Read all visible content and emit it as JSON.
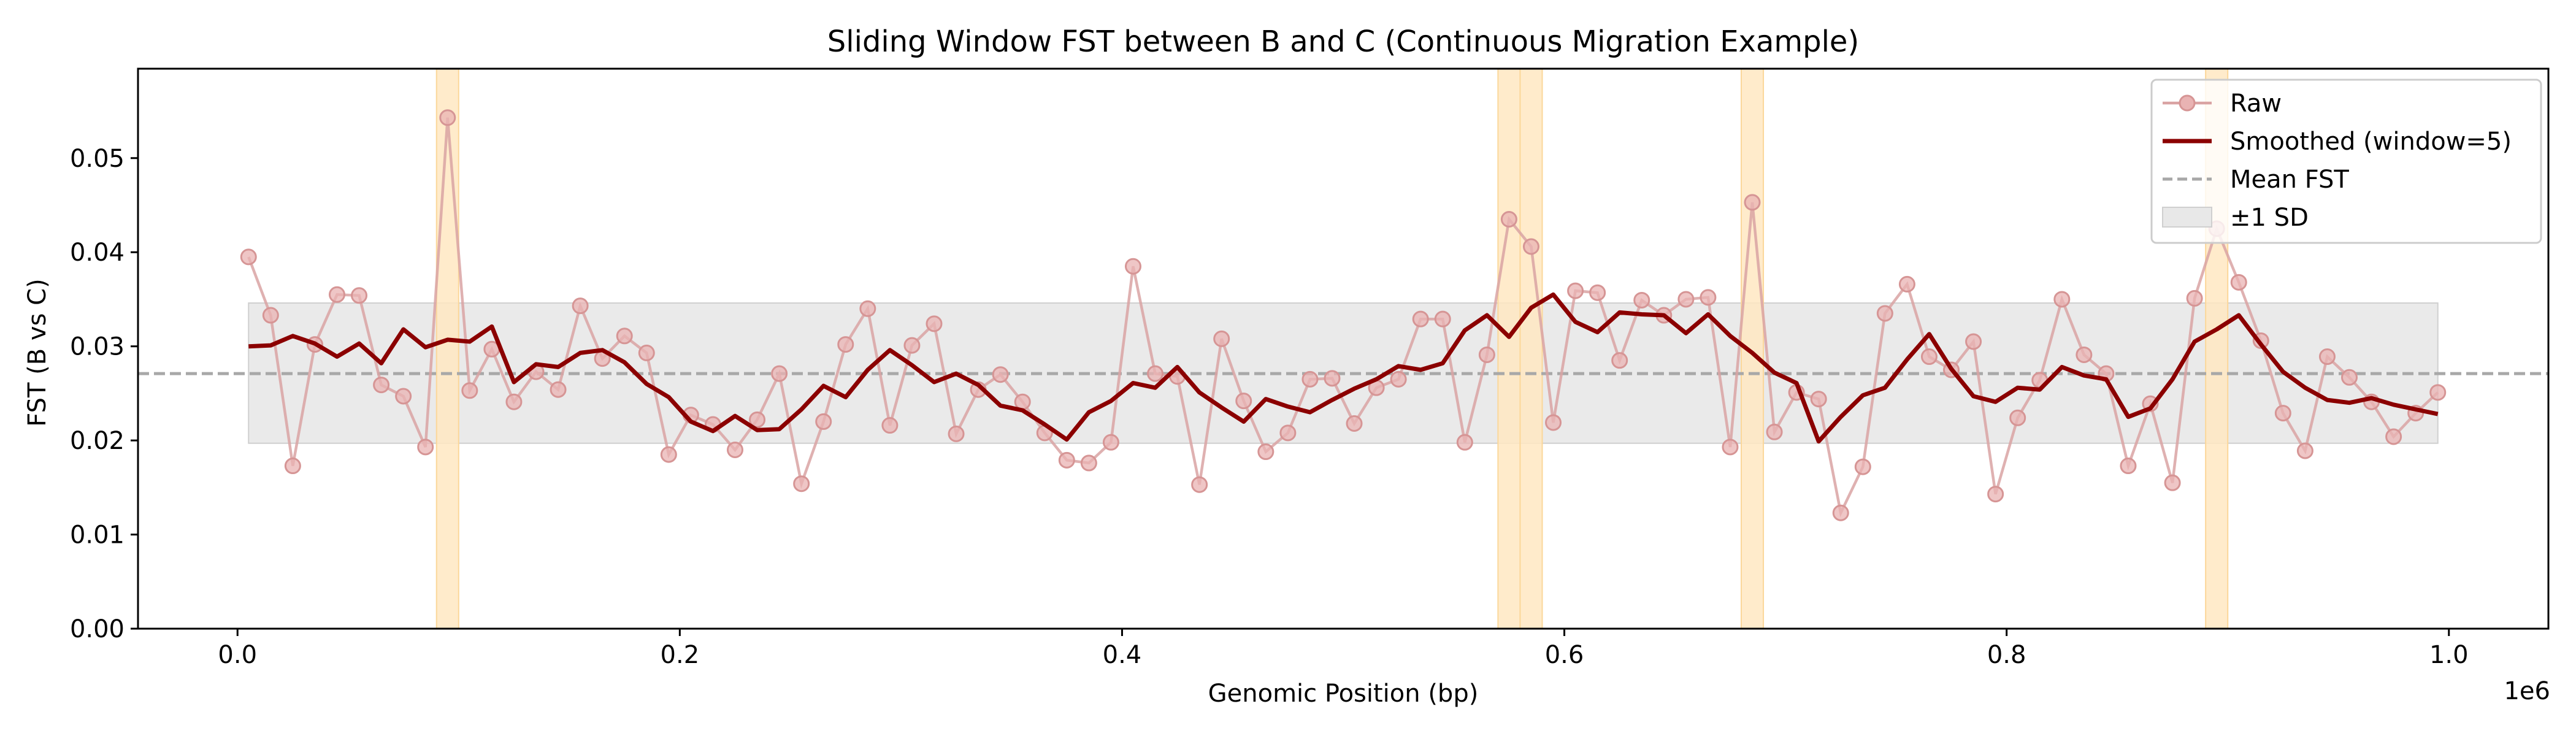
{
  "chart_data": {
    "type": "line",
    "title": "Sliding Window FST between B and C (Continuous Migration Example)",
    "xlabel": "Genomic Position (bp)",
    "ylabel": "FST (B vs C)",
    "x_offset_label": "1e6",
    "xlim": [
      -45000,
      1045000
    ],
    "ylim": [
      0.0,
      0.0595
    ],
    "x_ticks": [
      0.0,
      0.2,
      0.4,
      0.6,
      0.8,
      1.0
    ],
    "x_tick_labels": [
      "0.0",
      "0.2",
      "0.4",
      "0.6",
      "0.8",
      "1.0"
    ],
    "y_ticks": [
      0.0,
      0.01,
      0.02,
      0.03,
      0.04,
      0.05
    ],
    "y_tick_labels": [
      "0.00",
      "0.01",
      "0.02",
      "0.03",
      "0.04",
      "0.05"
    ],
    "grid": false,
    "legend_position": "top-right",
    "mean_fst": 0.0271,
    "sd_band": [
      0.0197,
      0.0346
    ],
    "band_x": [
      5000,
      995000
    ],
    "highlight_windows": [
      [
        90000,
        100000
      ],
      [
        570000,
        580000
      ],
      [
        580000,
        590000
      ],
      [
        680000,
        690000
      ],
      [
        890000,
        900000
      ]
    ],
    "colors": {
      "raw": "#d9a3a3",
      "smoothed": "#8b0000",
      "mean": "#a8a8a8",
      "band": "#e8e8e8",
      "highlight": "#ffe8c2"
    },
    "series": [
      {
        "name": "Raw",
        "x": [
          5000,
          15000,
          25000,
          35000,
          45000,
          55000,
          65000,
          75000,
          85000,
          95000,
          105000,
          115000,
          125000,
          135000,
          145000,
          155000,
          165000,
          175000,
          185000,
          195000,
          205000,
          215000,
          225000,
          235000,
          245000,
          255000,
          265000,
          275000,
          285000,
          295000,
          305000,
          315000,
          325000,
          335000,
          345000,
          355000,
          365000,
          375000,
          385000,
          395000,
          405000,
          415000,
          425000,
          435000,
          445000,
          455000,
          465000,
          475000,
          485000,
          495000,
          505000,
          515000,
          525000,
          535000,
          545000,
          555000,
          565000,
          575000,
          585000,
          595000,
          605000,
          615000,
          625000,
          635000,
          645000,
          655000,
          665000,
          675000,
          685000,
          695000,
          705000,
          715000,
          725000,
          735000,
          745000,
          755000,
          765000,
          775000,
          785000,
          795000,
          805000,
          815000,
          825000,
          835000,
          845000,
          855000,
          865000,
          875000,
          885000,
          895000,
          905000,
          915000,
          925000,
          935000,
          945000,
          955000,
          965000,
          975000,
          985000,
          995000
        ],
        "values": [
          0.0395,
          0.0333,
          0.0173,
          0.0302,
          0.0355,
          0.0354,
          0.0259,
          0.0247,
          0.0193,
          0.0543,
          0.0253,
          0.0297,
          0.0241,
          0.0273,
          0.0254,
          0.0343,
          0.0287,
          0.0311,
          0.0293,
          0.0185,
          0.0227,
          0.0217,
          0.019,
          0.0222,
          0.0271,
          0.0154,
          0.022,
          0.0302,
          0.034,
          0.0216,
          0.0301,
          0.0324,
          0.0207,
          0.0254,
          0.027,
          0.0241,
          0.0208,
          0.0179,
          0.0176,
          0.0198,
          0.0385,
          0.0271,
          0.0268,
          0.0153,
          0.0308,
          0.0242,
          0.0188,
          0.0208,
          0.0265,
          0.0266,
          0.0218,
          0.0256,
          0.0265,
          0.0329,
          0.0329,
          0.0198,
          0.0291,
          0.0435,
          0.0406,
          0.0219,
          0.0359,
          0.0357,
          0.0285,
          0.0349,
          0.0333,
          0.035,
          0.0352,
          0.0193,
          0.0453,
          0.0209,
          0.0251,
          0.0244,
          0.0123,
          0.0172,
          0.0335,
          0.0366,
          0.0289,
          0.0275,
          0.0305,
          0.0143,
          0.0224,
          0.0264,
          0.035,
          0.0291,
          0.0271,
          0.0173,
          0.0239,
          0.0155,
          0.0351,
          0.0425,
          0.0368,
          0.0306,
          0.0229,
          0.0189,
          0.0289,
          0.0267,
          0.0241,
          0.0204,
          0.0229,
          0.0251
        ]
      },
      {
        "name": "Smoothed (window=5)",
        "x": [
          5000,
          15000,
          25000,
          35000,
          45000,
          55000,
          65000,
          75000,
          85000,
          95000,
          105000,
          115000,
          125000,
          135000,
          145000,
          155000,
          165000,
          175000,
          185000,
          195000,
          205000,
          215000,
          225000,
          235000,
          245000,
          255000,
          265000,
          275000,
          285000,
          295000,
          305000,
          315000,
          325000,
          335000,
          345000,
          355000,
          365000,
          375000,
          385000,
          395000,
          405000,
          415000,
          425000,
          435000,
          445000,
          455000,
          465000,
          475000,
          485000,
          495000,
          505000,
          515000,
          525000,
          535000,
          545000,
          555000,
          565000,
          575000,
          585000,
          595000,
          605000,
          615000,
          625000,
          635000,
          645000,
          655000,
          665000,
          675000,
          685000,
          695000,
          705000,
          715000,
          725000,
          735000,
          745000,
          755000,
          765000,
          775000,
          785000,
          795000,
          805000,
          815000,
          825000,
          835000,
          845000,
          855000,
          865000,
          875000,
          885000,
          895000,
          905000,
          915000,
          925000,
          935000,
          945000,
          955000,
          965000,
          975000,
          985000,
          995000
        ],
        "values": [
          0.03,
          0.0301,
          0.0311,
          0.0303,
          0.0289,
          0.0303,
          0.0282,
          0.0318,
          0.0299,
          0.0307,
          0.0305,
          0.0321,
          0.0262,
          0.0281,
          0.0278,
          0.0293,
          0.0296,
          0.0283,
          0.026,
          0.0246,
          0.022,
          0.021,
          0.0226,
          0.0211,
          0.0212,
          0.0233,
          0.0258,
          0.0246,
          0.0275,
          0.0296,
          0.028,
          0.0262,
          0.0271,
          0.0259,
          0.0237,
          0.0232,
          0.0217,
          0.0201,
          0.023,
          0.0242,
          0.0261,
          0.0256,
          0.0278,
          0.0251,
          0.0235,
          0.022,
          0.0244,
          0.0236,
          0.023,
          0.0243,
          0.0255,
          0.0265,
          0.0279,
          0.0275,
          0.0282,
          0.0317,
          0.0333,
          0.031,
          0.0341,
          0.0355,
          0.0326,
          0.0315,
          0.0336,
          0.0334,
          0.0333,
          0.0314,
          0.0334,
          0.0311,
          0.0293,
          0.0272,
          0.0261,
          0.0199,
          0.0225,
          0.0248,
          0.0256,
          0.0286,
          0.0313,
          0.0276,
          0.0247,
          0.0241,
          0.0256,
          0.0254,
          0.0278,
          0.0269,
          0.0265,
          0.0225,
          0.0234,
          0.0265,
          0.0305,
          0.0318,
          0.0333,
          0.0302,
          0.0273,
          0.0256,
          0.0243,
          0.024,
          0.0245,
          0.0238,
          0.0233,
          0.0228
        ]
      }
    ],
    "legend": [
      {
        "label": "Raw",
        "kind": "marker-line"
      },
      {
        "label": "Smoothed (window=5)",
        "kind": "line"
      },
      {
        "label": "Mean FST",
        "kind": "dashed"
      },
      {
        "label": "±1 SD",
        "kind": "patch"
      }
    ]
  }
}
